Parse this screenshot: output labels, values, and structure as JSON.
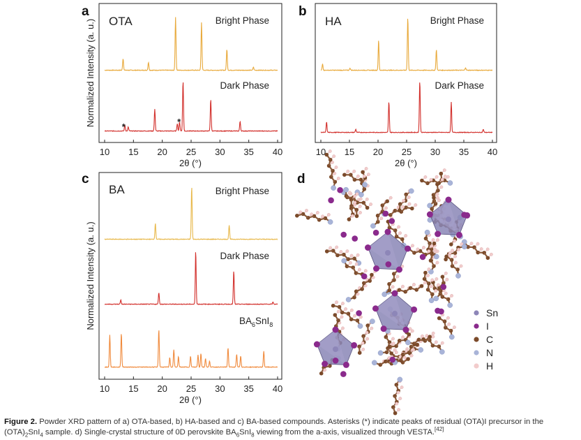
{
  "figure": {
    "panels": [
      {
        "id": "a",
        "letter": "a",
        "compound": "OTA",
        "ylabel": "Normalized Intensity (a. u.)",
        "xlabel": "2θ (°)",
        "xticks": [
          "10",
          "15",
          "20",
          "25",
          "30",
          "35",
          "40"
        ],
        "traces": [
          {
            "label": "Bright Phase",
            "color": "#e8a93a"
          },
          {
            "label": "Dark Phase",
            "color": "#d22f2b"
          }
        ],
        "annotations": [
          "*",
          "*"
        ]
      },
      {
        "id": "b",
        "letter": "b",
        "compound": "HA",
        "ylabel": "",
        "xlabel": "2θ (°)",
        "xticks": [
          "10",
          "15",
          "20",
          "25",
          "30",
          "35",
          "40"
        ],
        "traces": [
          {
            "label": "Bright Phase",
            "color": "#e8a93a"
          },
          {
            "label": "Dark Phase",
            "color": "#d22f2b"
          }
        ],
        "annotations": []
      },
      {
        "id": "c",
        "letter": "c",
        "compound": "BA",
        "ylabel": "Normalized Intensity (a. u.)",
        "xlabel": "2θ (°)",
        "xticks": [
          "10",
          "15",
          "20",
          "25",
          "30",
          "35",
          "40"
        ],
        "traces": [
          {
            "label": "Bright Phase",
            "color": "#e8b84a"
          },
          {
            "label": "Dark Phase",
            "color": "#d22f2b"
          },
          {
            "label": "BA6SnI8",
            "color": "#f08a3c"
          }
        ],
        "annotations": []
      }
    ],
    "panel_d": {
      "letter": "d",
      "legend": [
        {
          "label": "Sn",
          "color": "#8d86b8"
        },
        {
          "label": "I",
          "color": "#8a2a8c"
        },
        {
          "label": "C",
          "color": "#7b4a2a"
        },
        {
          "label": "N",
          "color": "#a9b4d8"
        },
        {
          "label": "H",
          "color": "#f2cccc"
        }
      ]
    }
  },
  "chart_data": [
    {
      "type": "line",
      "panel": "a",
      "xlabel": "2θ (°)",
      "ylabel": "Normalized Intensity (a. u.)",
      "xlim": [
        10,
        40
      ],
      "series": [
        {
          "name": "Bright Phase",
          "peaks": [
            [
              13.2,
              0.22
            ],
            [
              17.6,
              0.15
            ],
            [
              22.3,
              1.0
            ],
            [
              26.8,
              0.9
            ],
            [
              31.2,
              0.4
            ],
            [
              35.8,
              0.06
            ]
          ]
        },
        {
          "name": "Dark Phase",
          "peaks": [
            [
              13.5,
              0.12
            ],
            [
              14.1,
              0.08
            ],
            [
              18.7,
              0.44
            ],
            [
              22.6,
              0.15
            ],
            [
              23.0,
              0.18
            ],
            [
              23.6,
              1.0
            ],
            [
              28.4,
              0.63
            ],
            [
              33.5,
              0.19
            ]
          ]
        }
      ]
    },
    {
      "type": "line",
      "panel": "b",
      "xlabel": "2θ (°)",
      "ylabel": "",
      "xlim": [
        10,
        40
      ],
      "series": [
        {
          "name": "Bright Phase",
          "peaks": [
            [
              10.3,
              0.12
            ],
            [
              15.1,
              0.04
            ],
            [
              20.1,
              0.57
            ],
            [
              25.2,
              1.0
            ],
            [
              30.2,
              0.39
            ],
            [
              35.3,
              0.05
            ]
          ]
        },
        {
          "name": "Dark Phase",
          "peaks": [
            [
              11.0,
              0.2
            ],
            [
              16.1,
              0.06
            ],
            [
              21.9,
              0.6
            ],
            [
              27.3,
              1.0
            ],
            [
              32.8,
              0.59
            ],
            [
              38.4,
              0.06
            ]
          ]
        }
      ]
    },
    {
      "type": "line",
      "panel": "c",
      "xlabel": "2θ (°)",
      "ylabel": "Normalized Intensity (a. u.)",
      "xlim": [
        10,
        40
      ],
      "series": [
        {
          "name": "Bright Phase",
          "peaks": [
            [
              18.8,
              0.3
            ],
            [
              25.1,
              1.0
            ],
            [
              31.6,
              0.27
            ]
          ]
        },
        {
          "name": "Dark Phase",
          "peaks": [
            [
              12.8,
              0.08
            ],
            [
              19.4,
              0.22
            ],
            [
              25.8,
              1.0
            ],
            [
              32.4,
              0.62
            ],
            [
              39.2,
              0.04
            ]
          ]
        },
        {
          "name": "BA6SnI8",
          "peaks": [
            [
              10.9,
              0.66
            ],
            [
              12.9,
              0.7
            ],
            [
              19.4,
              0.78
            ],
            [
              21.3,
              0.2
            ],
            [
              22.0,
              0.36
            ],
            [
              22.8,
              0.22
            ],
            [
              24.9,
              0.22
            ],
            [
              26.2,
              0.25
            ],
            [
              26.7,
              0.28
            ],
            [
              27.5,
              0.18
            ],
            [
              28.2,
              0.12
            ],
            [
              31.4,
              0.4
            ],
            [
              32.9,
              0.26
            ],
            [
              33.6,
              0.23
            ],
            [
              37.6,
              0.33
            ]
          ]
        }
      ]
    }
  ],
  "caption": {
    "label": "Figure 2.",
    "text1": " Powder XRD pattern of a) OTA-based, b) HA-based and c) BA-based compounds. Asterisks (*) indicate peaks of residual (OTA)I precursor in the (OTA)",
    "sub1": "2",
    "text2": "SnI",
    "sub2": "4",
    "text3": " sample. d) Single-crystal structure of 0D perovskite BA",
    "sub3": "6",
    "text4": "SnI",
    "sub4": "8",
    "text5": " viewing from the a-axis, visualized through VESTA.",
    "sup1": "[42]"
  }
}
